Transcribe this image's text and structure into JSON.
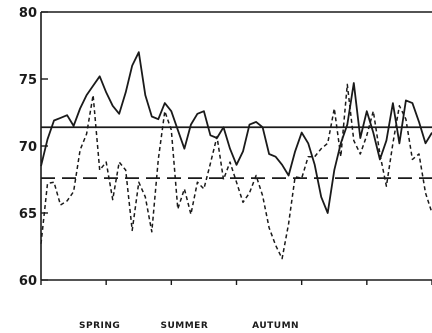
{
  "chart_data": {
    "type": "line",
    "title": "",
    "xlabel": "",
    "ylabel": "",
    "ylim": [
      60,
      80
    ],
    "yticks": [
      60,
      65,
      70,
      75,
      80
    ],
    "ytick_labels": [
      "60",
      "65",
      "70",
      "75",
      "80"
    ],
    "xlim": [
      0,
      60
    ],
    "x_tick_positions": [
      0,
      10,
      20,
      30,
      40,
      50,
      60
    ],
    "season_labels": [
      {
        "label": "SPRING",
        "x": 9
      },
      {
        "label": "SUMMER",
        "x": 22
      },
      {
        "label": "AUTUMN",
        "x": 36
      }
    ],
    "grid": false,
    "legend": "none",
    "reference_lines": [
      {
        "style": "solid",
        "value": 71.4
      },
      {
        "style": "dashed",
        "value": 67.6
      }
    ],
    "series": [
      {
        "style": "solid",
        "x": [
          0,
          1,
          2,
          3,
          4,
          5,
          6,
          7,
          8,
          9,
          10,
          11,
          12,
          13,
          14,
          15,
          16,
          17,
          18,
          19,
          20,
          21,
          22,
          23,
          24,
          25,
          26,
          27,
          28,
          29,
          30,
          31,
          32,
          33,
          34,
          35,
          36,
          37,
          38,
          39,
          40,
          41,
          42,
          43,
          44,
          45,
          46,
          47,
          48,
          49,
          50,
          51,
          52,
          53,
          54,
          55,
          56,
          57,
          58,
          59,
          60
        ],
        "values": [
          68.5,
          70.5,
          71.9,
          72.1,
          72.3,
          71.5,
          72.8,
          73.8,
          74.5,
          75.2,
          74.0,
          73.0,
          72.4,
          74.0,
          76.0,
          77.0,
          73.8,
          72.2,
          72.0,
          73.2,
          72.6,
          71.2,
          69.8,
          71.6,
          72.4,
          72.6,
          70.8,
          70.6,
          71.4,
          69.8,
          68.6,
          69.6,
          71.6,
          71.8,
          71.4,
          69.4,
          69.2,
          68.6,
          67.8,
          69.6,
          71.0,
          70.2,
          68.6,
          66.2,
          65.0,
          68.2,
          70.2,
          71.6,
          74.7,
          70.6,
          72.6,
          71.0,
          69.0,
          70.4,
          73.2,
          70.2,
          73.4,
          73.2,
          71.8,
          70.2,
          71.0
        ]
      },
      {
        "style": "dashed",
        "x": [
          0,
          1,
          2,
          3,
          4,
          5,
          6,
          7,
          8,
          9,
          10,
          11,
          12,
          13,
          14,
          15,
          16,
          17,
          18,
          19,
          20,
          21,
          22,
          23,
          24,
          25,
          26,
          27,
          28,
          29,
          30,
          31,
          32,
          33,
          34,
          35,
          36,
          37,
          38,
          39,
          40,
          41,
          42,
          43,
          44,
          45,
          46,
          47,
          48,
          49,
          50,
          51,
          52,
          53,
          54,
          55,
          56,
          57,
          58,
          59,
          60
        ],
        "values": [
          62.7,
          67.2,
          67.3,
          65.6,
          65.9,
          66.6,
          69.7,
          70.9,
          73.8,
          68.2,
          68.8,
          66.0,
          68.8,
          68.2,
          63.7,
          67.3,
          66.2,
          63.6,
          69.0,
          72.6,
          71.2,
          65.3,
          66.8,
          64.9,
          67.3,
          66.8,
          68.7,
          70.7,
          67.5,
          68.8,
          67.3,
          65.8,
          66.5,
          67.8,
          66.3,
          63.9,
          62.6,
          61.6,
          64.2,
          67.7,
          67.6,
          69.2,
          69.2,
          69.8,
          70.2,
          72.8,
          69.2,
          74.6,
          70.4,
          69.4,
          70.8,
          72.6,
          69.4,
          67.0,
          70.2,
          73.0,
          72.0,
          69.0,
          69.4,
          66.5,
          65.0
        ]
      }
    ]
  }
}
